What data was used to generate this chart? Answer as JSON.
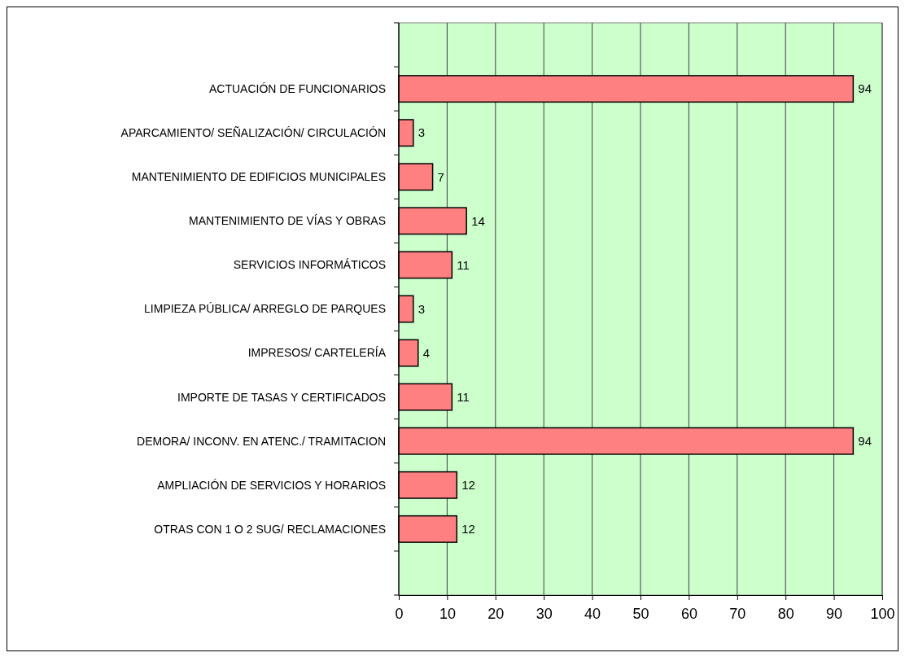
{
  "chart_data": {
    "type": "bar",
    "orientation": "horizontal",
    "categories": [
      null,
      "ACTUACIÓN DE FUNCIONARIOS",
      "APARCAMIENTO/ SEÑALIZACIÓN/ CIRCULACIÓN",
      "MANTENIMIENTO DE EDIFICIOS MUNICIPALES",
      "MANTENIMIENTO DE VÍAS Y OBRAS",
      "SERVICIOS INFORMÁTICOS",
      "LIMPIEZA PÚBLICA/ ARREGLO DE PARQUES",
      "IMPRESOS/ CARTELERÍA",
      "IMPORTE DE TASAS Y CERTIFICADOS",
      "DEMORA/ INCONV. EN ATENC./ TRAMITACION",
      "AMPLIACIÓN DE SERVICIOS Y HORARIOS",
      "OTRAS CON 1 O 2 SUG/ RECLAMACIONES",
      null
    ],
    "values": [
      null,
      94,
      3,
      7,
      14,
      11,
      3,
      4,
      11,
      94,
      12,
      12,
      null
    ],
    "color": "#ff8080",
    "xlim": [
      0,
      100
    ],
    "xticks": [
      0,
      10,
      20,
      30,
      40,
      50,
      60,
      70,
      80,
      90,
      100
    ],
    "grid": "x",
    "data_labels": true
  }
}
